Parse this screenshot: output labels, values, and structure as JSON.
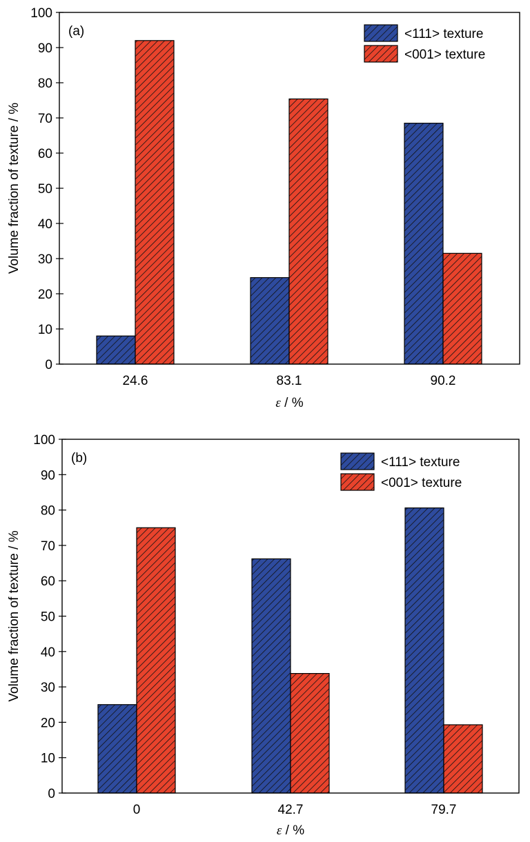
{
  "colors": {
    "series_111": "#2e4b9e",
    "series_001": "#e8432c",
    "hatch": "#111111"
  },
  "chart_data": [
    {
      "type": "bar",
      "panel_label": "(a)",
      "categories": [
        "24.6",
        "83.1",
        "90.2"
      ],
      "series": [
        {
          "name": "<111> texture",
          "values": [
            8,
            24.6,
            68.5
          ]
        },
        {
          "name": "<001> texture",
          "values": [
            92,
            75.4,
            31.5
          ]
        }
      ],
      "xlabel": {
        "symbol": "ε",
        "unit": " / %"
      },
      "ylabel": "Volume fraction of texture / %",
      "ylim": [
        0,
        100
      ],
      "yticks": [
        "0",
        "10",
        "20",
        "30",
        "40",
        "50",
        "60",
        "70",
        "80",
        "90",
        "100"
      ],
      "grid": false,
      "legend": "top-right"
    },
    {
      "type": "bar",
      "panel_label": "(b)",
      "categories": [
        "0",
        "42.7",
        "79.7"
      ],
      "series": [
        {
          "name": "<111> texture",
          "values": [
            25,
            66.2,
            80.6
          ]
        },
        {
          "name": "<001> texture",
          "values": [
            75,
            33.8,
            19.3
          ]
        }
      ],
      "xlabel": {
        "symbol": "ε",
        "unit": " / %"
      },
      "ylabel": "Volume fraction of texture / %",
      "ylim": [
        0,
        100
      ],
      "yticks": [
        "0",
        "10",
        "20",
        "30",
        "40",
        "50",
        "60",
        "70",
        "80",
        "90",
        "100"
      ],
      "grid": false,
      "legend": "top-right"
    }
  ]
}
